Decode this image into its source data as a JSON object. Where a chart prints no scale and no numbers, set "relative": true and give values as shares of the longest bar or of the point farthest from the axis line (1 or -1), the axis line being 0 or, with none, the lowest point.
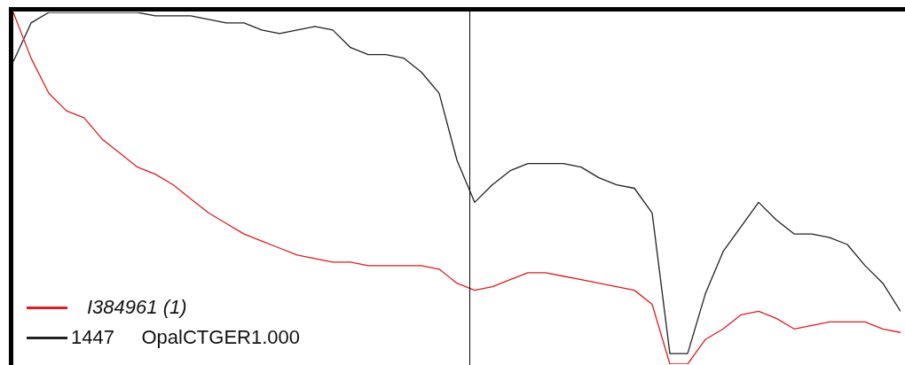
{
  "chart_data": {
    "type": "line",
    "relative": true,
    "legend": "bottom left",
    "marker": "none",
    "categories": [
      null,
      null,
      null,
      null,
      null,
      null,
      null,
      null,
      null,
      null,
      null,
      null,
      null,
      null,
      null,
      null,
      null,
      null,
      null,
      null,
      null,
      null,
      null,
      null,
      null,
      null,
      null,
      null,
      null,
      null,
      null,
      null,
      null,
      null,
      null,
      null,
      null,
      null,
      null,
      null,
      null,
      null,
      null,
      null,
      null,
      null,
      null,
      null,
      null,
      null,
      null
    ],
    "series": [
      {
        "name": "I384961 (1)",
        "color": "#e41a1c",
        "values": [
          1.0,
          0.87,
          0.77,
          0.72,
          0.7,
          0.64,
          0.6,
          0.56,
          0.54,
          0.51,
          0.47,
          0.43,
          0.4,
          0.37,
          0.35,
          0.33,
          0.31,
          0.3,
          0.29,
          0.29,
          0.28,
          0.28,
          0.28,
          0.28,
          0.27,
          0.23,
          0.21,
          0.22,
          0.24,
          0.26,
          0.26,
          0.25,
          0.24,
          0.23,
          0.22,
          0.21,
          0.17,
          0,
          0,
          0.07,
          0.1,
          0.14,
          0.15,
          0.13,
          0.1,
          0.11,
          0.12,
          0.12,
          0.12,
          0.1,
          0.09
        ]
      },
      {
        "name": "1447     OpalCTGER1.000",
        "color": "#222222",
        "values": [
          0.86,
          0.97,
          1.0,
          1.0,
          1.0,
          1.0,
          1.0,
          1.0,
          0.99,
          0.99,
          0.99,
          0.98,
          0.97,
          0.97,
          0.95,
          0.94,
          0.95,
          0.96,
          0.95,
          0.9,
          0.88,
          0.88,
          0.87,
          0.83,
          0.77,
          0.58,
          0.46,
          0.51,
          0.55,
          0.57,
          0.57,
          0.57,
          0.56,
          0.53,
          0.51,
          0.5,
          0.43,
          0.03,
          0.03,
          0.2,
          0.32,
          0.39,
          0.46,
          0.41,
          0.37,
          0.37,
          0.36,
          0.34,
          0.28,
          0.23,
          0.15
        ]
      }
    ]
  }
}
